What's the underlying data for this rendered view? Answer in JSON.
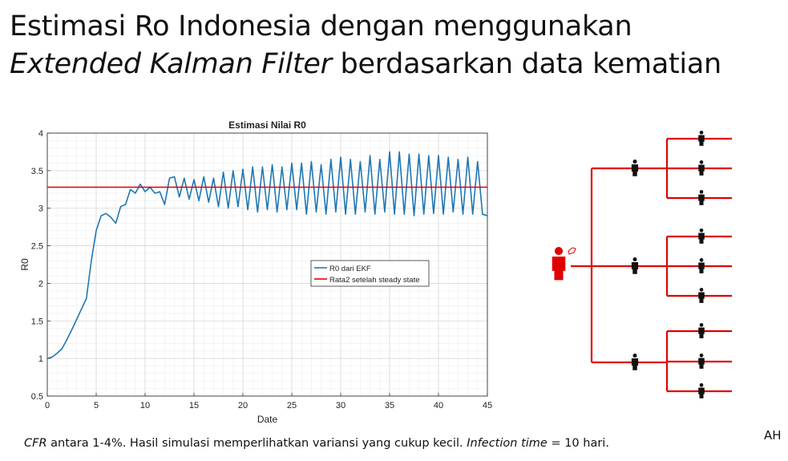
{
  "slide": {
    "title_line1": "Estimasi Ro Indonesia dengan menggunakan",
    "title_line2_italic": "Extended Kalman Filter",
    "title_line2_rest": " berdasarkan data kematian",
    "caption_italic_1": "CFR",
    "caption_text_1": " antara 1-4%. Hasil simulasi memperlihatkan variansi yang cukup kecil. ",
    "caption_italic_2": "Infection time",
    "caption_text_2": " = 10 hari.",
    "author": "AH"
  },
  "colors": {
    "ekf_line": "#1f77b4",
    "mean_line": "#e00000",
    "tree_line": "#e00000",
    "person": "#111111",
    "source_person": "#e00000"
  },
  "chart_data": {
    "type": "line",
    "title": "Estimasi Nilai R0",
    "xlabel": "Date",
    "ylabel": "R0",
    "xlim": [
      0,
      45
    ],
    "ylim": [
      0.5,
      4
    ],
    "xticks": [
      "0",
      "5",
      "10",
      "15",
      "20",
      "25",
      "30",
      "35",
      "40",
      "45"
    ],
    "yticks": [
      "0.5",
      "1",
      "1.5",
      "2",
      "2.5",
      "3",
      "3.5",
      "4"
    ],
    "grid": true,
    "legend_position": "center-right",
    "series": [
      {
        "name": "R0 dari EKF",
        "x": [
          0,
          0.5,
          1,
          1.5,
          2,
          2.5,
          3,
          3.5,
          4,
          4.5,
          5,
          5.5,
          6,
          6.5,
          7,
          7.5,
          8,
          8.5,
          9,
          9.5,
          10,
          10.5,
          11,
          11.5,
          12,
          12.5,
          13,
          13.5,
          14,
          14.5,
          15,
          15.5,
          16,
          16.5,
          17,
          17.5,
          18,
          18.5,
          19,
          19.5,
          20,
          20.5,
          21,
          21.5,
          22,
          22.5,
          23,
          23.5,
          24,
          24.5,
          25,
          25.5,
          26,
          26.5,
          27,
          27.5,
          28,
          28.5,
          29,
          29.5,
          30,
          30.5,
          31,
          31.5,
          32,
          32.5,
          33,
          33.5,
          34,
          34.5,
          35,
          35.5,
          36,
          36.5,
          37,
          37.5,
          38,
          38.5,
          39,
          39.5,
          40,
          40.5,
          41,
          41.5,
          42,
          42.5,
          43,
          43.5,
          44,
          44.5,
          45
        ],
        "y": [
          1.0,
          1.02,
          1.07,
          1.13,
          1.25,
          1.38,
          1.52,
          1.66,
          1.8,
          2.3,
          2.7,
          2.9,
          2.93,
          2.88,
          2.8,
          3.02,
          3.05,
          3.25,
          3.2,
          3.32,
          3.22,
          3.28,
          3.2,
          3.22,
          3.05,
          3.4,
          3.42,
          3.15,
          3.4,
          3.12,
          3.38,
          3.1,
          3.42,
          3.08,
          3.4,
          3.02,
          3.48,
          3.0,
          3.5,
          3.02,
          3.52,
          2.98,
          3.55,
          2.95,
          3.55,
          2.98,
          3.58,
          2.95,
          3.55,
          2.98,
          3.6,
          2.98,
          3.6,
          2.92,
          3.62,
          2.95,
          3.58,
          2.92,
          3.65,
          2.95,
          3.68,
          2.92,
          3.65,
          2.92,
          3.62,
          2.95,
          3.7,
          2.92,
          3.65,
          2.95,
          3.75,
          2.92,
          3.75,
          2.92,
          3.72,
          2.9,
          3.72,
          2.92,
          3.7,
          2.93,
          3.7,
          2.92,
          3.68,
          2.95,
          3.65,
          2.92,
          3.68,
          2.92,
          3.62,
          2.92,
          2.9
        ]
      },
      {
        "name": "Rata2 setelah steady state",
        "x": [
          0,
          45
        ],
        "y": [
          3.28,
          3.28
        ]
      }
    ]
  }
}
